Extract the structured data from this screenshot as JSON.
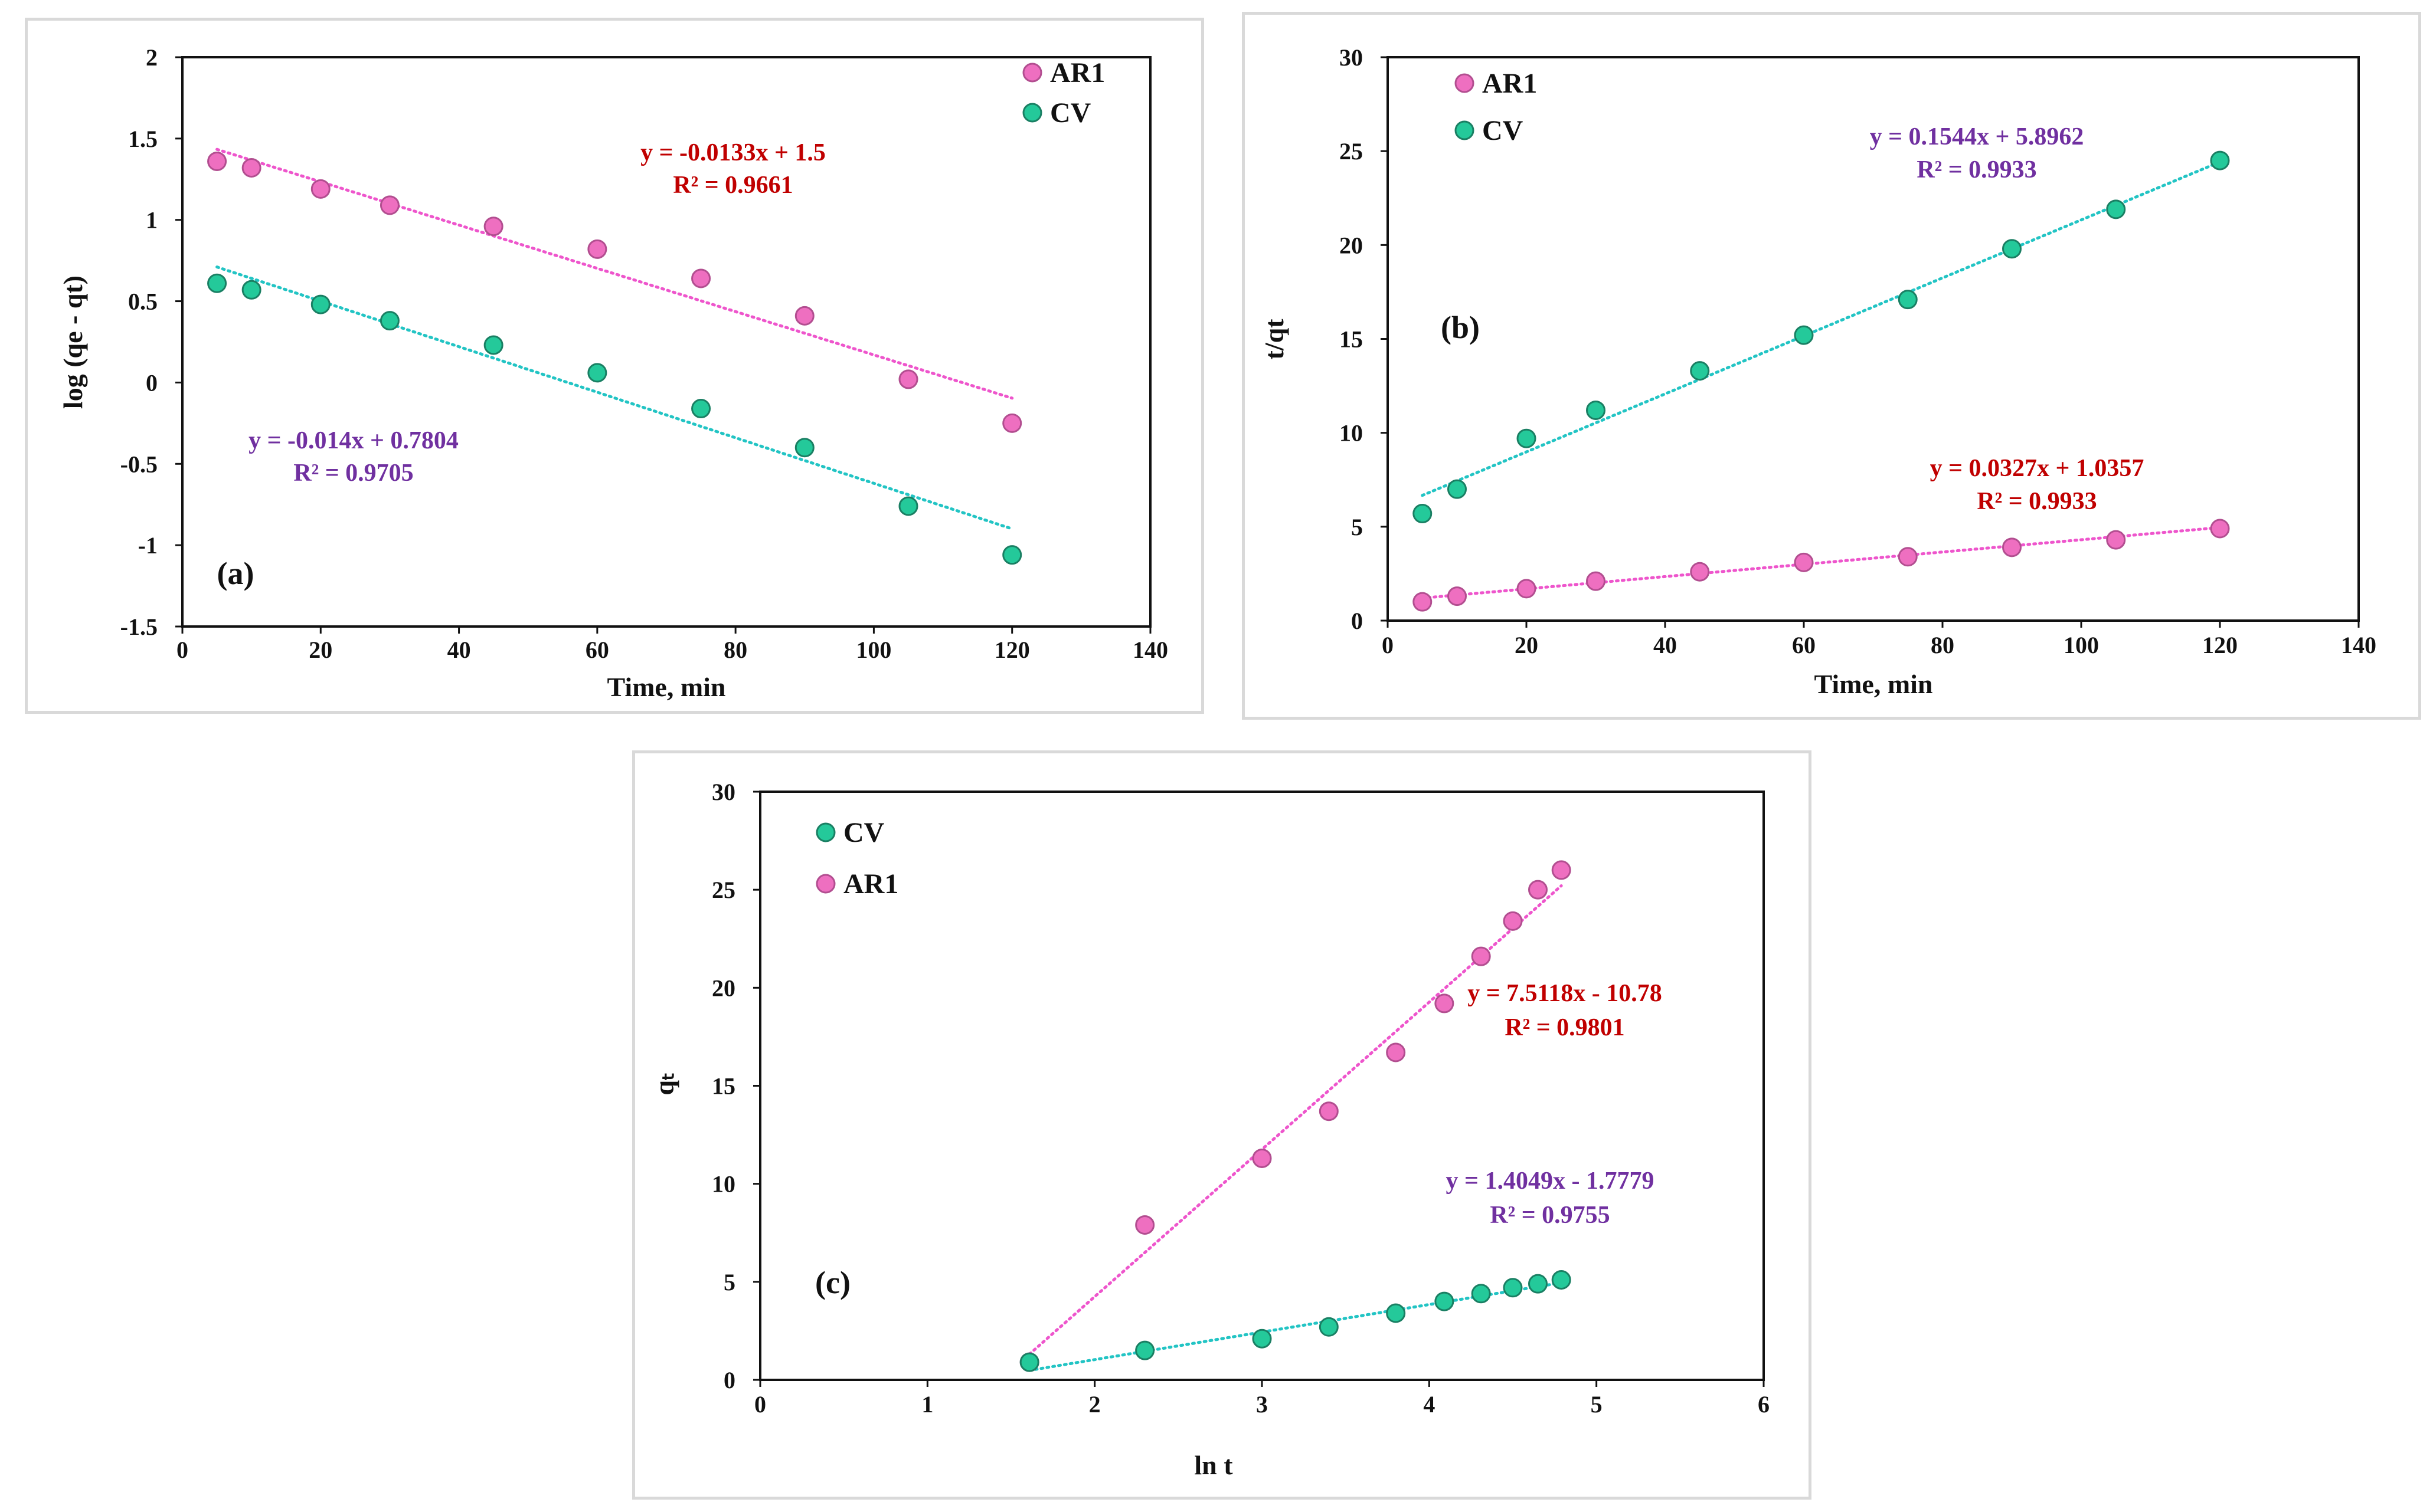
{
  "colors": {
    "ar1_fill": "#ee6fc0",
    "ar1_stroke": "#b24e90",
    "ar1_line": "#ee55cc",
    "cv_fill": "#24c99a",
    "cv_stroke": "#1a7f63",
    "cv_line": "#22c4c4",
    "eq_red": "#c00000",
    "eq_purple": "#7030a0"
  },
  "chart_data": [
    {
      "id": "a",
      "type": "scatter",
      "panel_label": "(a)",
      "title": "",
      "xlabel": "Time, min",
      "ylabel": "log (qe - qt)",
      "xlim": [
        0,
        140
      ],
      "ylim": [
        -1.5,
        2
      ],
      "xticks": [
        0,
        20,
        40,
        60,
        80,
        100,
        120,
        140
      ],
      "yticks": [
        -1.5,
        -1,
        -0.5,
        0,
        0.5,
        1,
        1.5,
        2
      ],
      "ytick_labels": [
        "-1.5",
        "-1",
        "-0.5",
        "0",
        "0.5",
        "1",
        "1.5",
        "2"
      ],
      "legend": [
        "AR1",
        "CV"
      ],
      "series": [
        {
          "name": "AR1",
          "x": [
            5,
            10,
            20,
            30,
            45,
            60,
            75,
            90,
            105,
            120
          ],
          "y": [
            1.36,
            1.32,
            1.19,
            1.09,
            0.96,
            0.82,
            0.64,
            0.41,
            0.02,
            -0.25
          ],
          "trend": {
            "slope": -0.0133,
            "intercept": 1.5,
            "x_range": [
              5,
              120
            ]
          },
          "equation": "y = -0.0133x + 1.5",
          "r2": "R² = 0.9661"
        },
        {
          "name": "CV",
          "x": [
            5,
            10,
            20,
            30,
            45,
            60,
            75,
            90,
            105,
            120
          ],
          "y": [
            0.61,
            0.57,
            0.48,
            0.38,
            0.23,
            0.06,
            -0.16,
            -0.4,
            -0.76,
            -1.06
          ],
          "trend": {
            "slope": -0.014,
            "intercept": 0.7804,
            "x_range": [
              5,
              120
            ]
          },
          "equation": "y = -0.014x + 0.7804",
          "r2": "R² = 0.9705"
        }
      ]
    },
    {
      "id": "b",
      "type": "scatter",
      "panel_label": "(b)",
      "title": "",
      "xlabel": "Time, min",
      "ylabel": "t/qt",
      "xlim": [
        0,
        140
      ],
      "ylim": [
        0,
        30
      ],
      "xticks": [
        0,
        20,
        40,
        60,
        80,
        100,
        120,
        140
      ],
      "yticks": [
        0,
        5,
        10,
        15,
        20,
        25,
        30
      ],
      "ytick_labels": [
        "0",
        "5",
        "10",
        "15",
        "20",
        "25",
        "30"
      ],
      "legend": [
        "AR1",
        "CV"
      ],
      "series": [
        {
          "name": "AR1",
          "x": [
            5,
            10,
            20,
            30,
            45,
            60,
            75,
            90,
            105,
            120
          ],
          "y": [
            1.0,
            1.3,
            1.7,
            2.1,
            2.6,
            3.1,
            3.4,
            3.9,
            4.3,
            4.9
          ],
          "trend": {
            "slope": 0.0327,
            "intercept": 1.0357,
            "x_range": [
              5,
              120
            ]
          },
          "equation": "y = 0.0327x + 1.0357",
          "r2": "R² = 0.9933"
        },
        {
          "name": "CV",
          "x": [
            5,
            10,
            20,
            30,
            45,
            60,
            75,
            90,
            105,
            120
          ],
          "y": [
            5.7,
            7.0,
            9.7,
            11.2,
            13.3,
            15.2,
            17.1,
            19.8,
            21.9,
            24.5
          ],
          "trend": {
            "slope": 0.1544,
            "intercept": 5.8962,
            "x_range": [
              5,
              120
            ]
          },
          "equation": "y = 0.1544x + 5.8962",
          "r2": "R² = 0.9933"
        }
      ]
    },
    {
      "id": "c",
      "type": "scatter",
      "panel_label": "(c)",
      "title": "",
      "xlabel": "ln t",
      "ylabel": "qₜ",
      "xlim": [
        0,
        6
      ],
      "ylim": [
        0,
        30
      ],
      "xticks": [
        0,
        1,
        2,
        3,
        4,
        5,
        6
      ],
      "yticks": [
        0,
        5,
        10,
        15,
        20,
        25,
        30
      ],
      "ytick_labels": [
        "0",
        "5",
        "10",
        "15",
        "20",
        "25",
        "30"
      ],
      "legend": [
        "CV",
        "AR1"
      ],
      "series": [
        {
          "name": "AR1",
          "x": [
            1.61,
            2.3,
            3.0,
            3.4,
            3.8,
            4.09,
            4.31,
            4.5,
            4.65,
            4.79
          ],
          "y": [
            0.9,
            7.9,
            11.3,
            13.7,
            16.7,
            19.2,
            21.6,
            23.4,
            25.0,
            26.0
          ],
          "trend": {
            "slope": 7.5118,
            "intercept": -10.78,
            "x_range": [
              1.61,
              4.79
            ]
          },
          "equation": "y = 7.5118x - 10.78",
          "r2": "R² = 0.9801"
        },
        {
          "name": "CV",
          "x": [
            1.61,
            2.3,
            3.0,
            3.4,
            3.8,
            4.09,
            4.31,
            4.5,
            4.65,
            4.79
          ],
          "y": [
            0.9,
            1.5,
            2.1,
            2.7,
            3.4,
            4.0,
            4.4,
            4.7,
            4.9,
            5.1
          ],
          "trend": {
            "slope": 1.4049,
            "intercept": -1.7779,
            "x_range": [
              1.61,
              4.79
            ]
          },
          "equation": "y = 1.4049x - 1.7779",
          "r2": "R² = 0.9755"
        }
      ]
    }
  ]
}
